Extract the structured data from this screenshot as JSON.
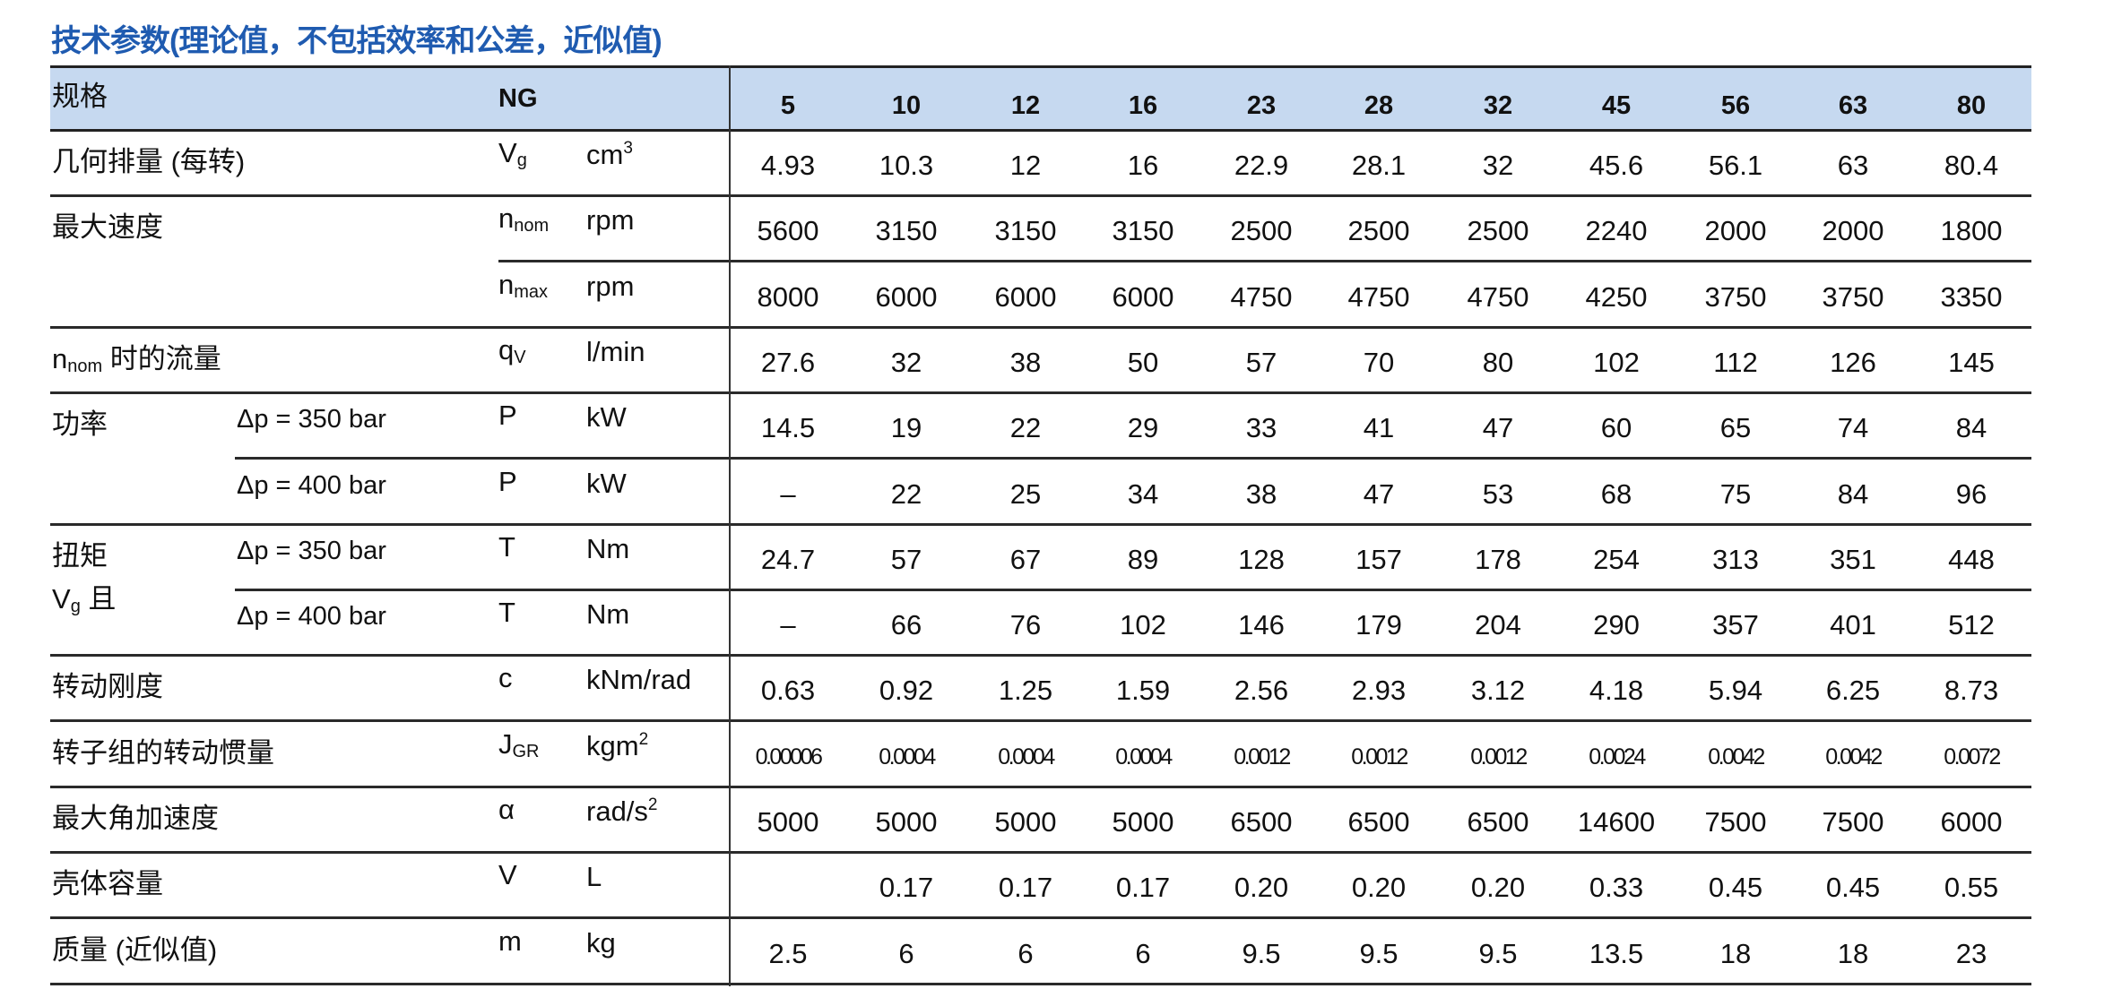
{
  "title": "技术参数(理论值，不包括效率和公差，近似值)",
  "header": {
    "label": "规格",
    "ng": "NG",
    "sizes": [
      "5",
      "10",
      "12",
      "16",
      "23",
      "28",
      "32",
      "45",
      "56",
      "63",
      "80"
    ]
  },
  "colors": {
    "title": "#1f5bb0",
    "header_bg": "#c6d9f0"
  },
  "rows": [
    {
      "label": "几何排量 (每转)",
      "sym": "V",
      "sym_sub": "g",
      "unit": "cm",
      "unit_sup": "3",
      "values": [
        "4.93",
        "10.3",
        "12",
        "16",
        "22.9",
        "28.1",
        "32",
        "45.6",
        "56.1",
        "63",
        "80.4"
      ]
    },
    {
      "label": "最大速度",
      "sym": "n",
      "sym_sub": "nom",
      "unit": "rpm",
      "values": [
        "5600",
        "3150",
        "3150",
        "3150",
        "2500",
        "2500",
        "2500",
        "2240",
        "2000",
        "2000",
        "1800"
      ]
    },
    {
      "sym": "n",
      "sym_sub": "max",
      "unit": "rpm",
      "values": [
        "8000",
        "6000",
        "6000",
        "6000",
        "4750",
        "4750",
        "4750",
        "4250",
        "3750",
        "3750",
        "3350"
      ]
    },
    {
      "label_prefix": "n",
      "label_prefix_sub": "nom",
      "label": " 时的流量",
      "sym": "q",
      "sym_sub": "V",
      "unit": "l/min",
      "values": [
        "27.6",
        "32",
        "38",
        "50",
        "57",
        "70",
        "80",
        "102",
        "112",
        "126",
        "145"
      ]
    },
    {
      "label": "功率",
      "sub": "Δp = 350 bar",
      "sym": "P",
      "unit": "kW",
      "values": [
        "14.5",
        "19",
        "22",
        "29",
        "33",
        "41",
        "47",
        "60",
        "65",
        "74",
        "84"
      ]
    },
    {
      "sub": "Δp = 400 bar",
      "sym": "P",
      "unit": "kW",
      "values": [
        "–",
        "22",
        "25",
        "34",
        "38",
        "47",
        "53",
        "68",
        "75",
        "84",
        "96"
      ]
    },
    {
      "label": "扭矩",
      "label2": "V",
      "label2_sub": "g",
      "label2_text": " 且",
      "sub": "Δp = 350 bar",
      "sym": "T",
      "unit": "Nm",
      "values": [
        "24.7",
        "57",
        "67",
        "89",
        "128",
        "157",
        "178",
        "254",
        "313",
        "351",
        "448"
      ]
    },
    {
      "sub": "Δp = 400 bar",
      "sym": "T",
      "unit": "Nm",
      "values": [
        "–",
        "66",
        "76",
        "102",
        "146",
        "179",
        "204",
        "290",
        "357",
        "401",
        "512"
      ]
    },
    {
      "label": "转动刚度",
      "sym": "c",
      "unit": "kNm/rad",
      "values": [
        "0.63",
        "0.92",
        "1.25",
        "1.59",
        "2.56",
        "2.93",
        "3.12",
        "4.18",
        "5.94",
        "6.25",
        "8.73"
      ]
    },
    {
      "label": "转子组的转动惯量",
      "sym": "J",
      "sym_sub": "GR",
      "unit": "kgm",
      "unit_sup": "2",
      "small": true,
      "values": [
        "0.00006",
        "0.0004",
        "0.0004",
        "0.0004",
        "0.0012",
        "0.0012",
        "0.0012",
        "0.0024",
        "0.0042",
        "0.0042",
        "0.0072"
      ]
    },
    {
      "label": "最大角加速度",
      "sym": "α",
      "unit": "rad/s",
      "unit_sup": "2",
      "values": [
        "5000",
        "5000",
        "5000",
        "5000",
        "6500",
        "6500",
        "6500",
        "14600",
        "7500",
        "7500",
        "6000"
      ]
    },
    {
      "label": "壳体容量",
      "sym": "V",
      "unit": "L",
      "values": [
        "",
        "0.17",
        "0.17",
        "0.17",
        "0.20",
        "0.20",
        "0.20",
        "0.33",
        "0.45",
        "0.45",
        "0.55"
      ]
    },
    {
      "label": "质量 (近似值)",
      "sym": "m",
      "unit": "kg",
      "values": [
        "2.5",
        "6",
        "6",
        "6",
        "9.5",
        "9.5",
        "9.5",
        "13.5",
        "18",
        "18",
        "23"
      ]
    }
  ]
}
